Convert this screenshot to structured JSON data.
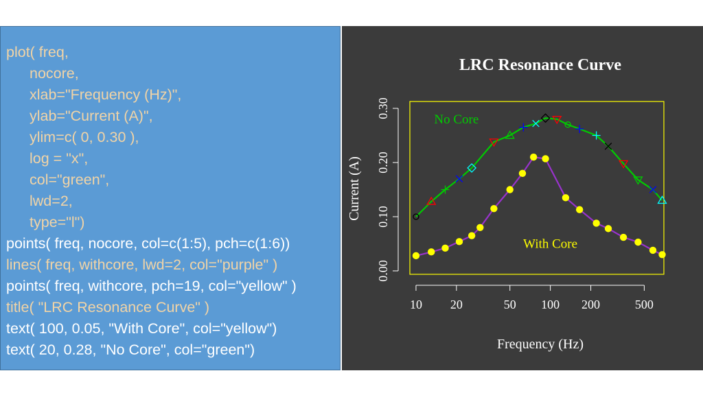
{
  "code_lines": [
    {
      "text": "plot( freq,",
      "color": "#f2d4a6",
      "indent": false
    },
    {
      "text": "nocore,",
      "color": "#f2d4a6",
      "indent": true
    },
    {
      "text": "xlab=\"Frequency (Hz)\",",
      "color": "#f2d4a6",
      "indent": true
    },
    {
      "text": "ylab=\"Current (A)\",",
      "color": "#f2d4a6",
      "indent": true
    },
    {
      "text": "ylim=c( 0, 0.30 ),",
      "color": "#f2d4a6",
      "indent": true
    },
    {
      "text": "log = \"x\",",
      "color": "#f2d4a6",
      "indent": true
    },
    {
      "text": "col=\"green\",",
      "color": "#f2d4a6",
      "indent": true
    },
    {
      "text": "lwd=2,",
      "color": "#f2d4a6",
      "indent": true
    },
    {
      "text": "type=\"l\")",
      "color": "#f2d4a6",
      "indent": true
    },
    {
      "text": "points( freq, nocore, col=c(1:5), pch=c(1:6))",
      "color": "#ffffff",
      "indent": false
    },
    {
      "text": "lines( freq, withcore, lwd=2, col=\"purple\" )",
      "color": "#f2d4a6",
      "indent": false
    },
    {
      "text": "points( freq, withcore, pch=19, col=\"yellow\" )",
      "color": "#ffffff",
      "indent": false
    },
    {
      "text": "title( \"LRC Resonance Curve\" )",
      "color": "#f2d4a6",
      "indent": false
    },
    {
      "text": "text( 100, 0.05, \"With Core\", col=\"yellow\")",
      "color": "#ffffff",
      "indent": false
    },
    {
      "text": "text( 20, 0.28, \"No Core\", col=\"green\")",
      "color": "#ffffff",
      "indent": false
    }
  ],
  "chart_data": {
    "type": "line",
    "title": "LRC Resonance Curve",
    "xlabel": "Frequency (Hz)",
    "ylabel": "Current (A)",
    "x_scale": "log",
    "xlim": [
      9,
      700
    ],
    "ylim": [
      0,
      0.3
    ],
    "x_ticks": [
      10,
      20,
      50,
      100,
      200,
      500
    ],
    "y_ticks": [
      "0.00",
      "0.10",
      "0.20",
      "0.30"
    ],
    "y_tick_values": [
      0,
      0.1,
      0.2,
      0.3
    ],
    "box_color": "#ffff00",
    "axis_color": "#ffffff",
    "series": [
      {
        "name": "No Core",
        "line_color": "#00cc00",
        "x": [
          10,
          13,
          16.5,
          21,
          26,
          38,
          50,
          63,
          78,
          92,
          112,
          135,
          165,
          220,
          270,
          350,
          450,
          580,
          680
        ],
        "values": [
          0.1,
          0.128,
          0.15,
          0.17,
          0.19,
          0.238,
          0.25,
          0.265,
          0.272,
          0.282,
          0.28,
          0.27,
          0.262,
          0.25,
          0.23,
          0.198,
          0.168,
          0.15,
          0.13
        ],
        "point_colors": [
          "#000000",
          "#ff0000",
          "#00cc00",
          "#0000ff",
          "#00ffff",
          "#ff0000",
          "#00cc00",
          "#0000ff",
          "#00ffff",
          "#000000",
          "#ff0000",
          "#00cc00",
          "#0000ff",
          "#00ffff",
          "#000000",
          "#ff0000",
          "#00cc00",
          "#0000ff",
          "#00ffff"
        ],
        "point_shapes": [
          "circle",
          "triangle",
          "plus",
          "x",
          "diamond",
          "triangle-down",
          "triangle",
          "plus",
          "x",
          "diamond",
          "triangle-down",
          "circle",
          "plus",
          "plus",
          "x",
          "triangle-down",
          "triangle-down",
          "x",
          "triangle"
        ]
      },
      {
        "name": "With Core",
        "line_color": "#9933cc",
        "point_color": "#ffff00",
        "x": [
          10,
          13,
          16.5,
          21,
          26,
          30,
          38,
          50,
          62,
          75,
          92,
          130,
          165,
          220,
          270,
          350,
          450,
          580,
          680
        ],
        "values": [
          0.028,
          0.035,
          0.042,
          0.054,
          0.065,
          0.08,
          0.115,
          0.15,
          0.18,
          0.21,
          0.207,
          0.135,
          0.113,
          0.088,
          0.078,
          0.062,
          0.053,
          0.038,
          0.03
        ]
      }
    ],
    "annotations": [
      {
        "text": "No Core",
        "x": 20,
        "y": 0.28,
        "color": "#00cc00"
      },
      {
        "text": "With Core",
        "x": 100,
        "y": 0.05,
        "color": "#ffff00"
      }
    ]
  }
}
